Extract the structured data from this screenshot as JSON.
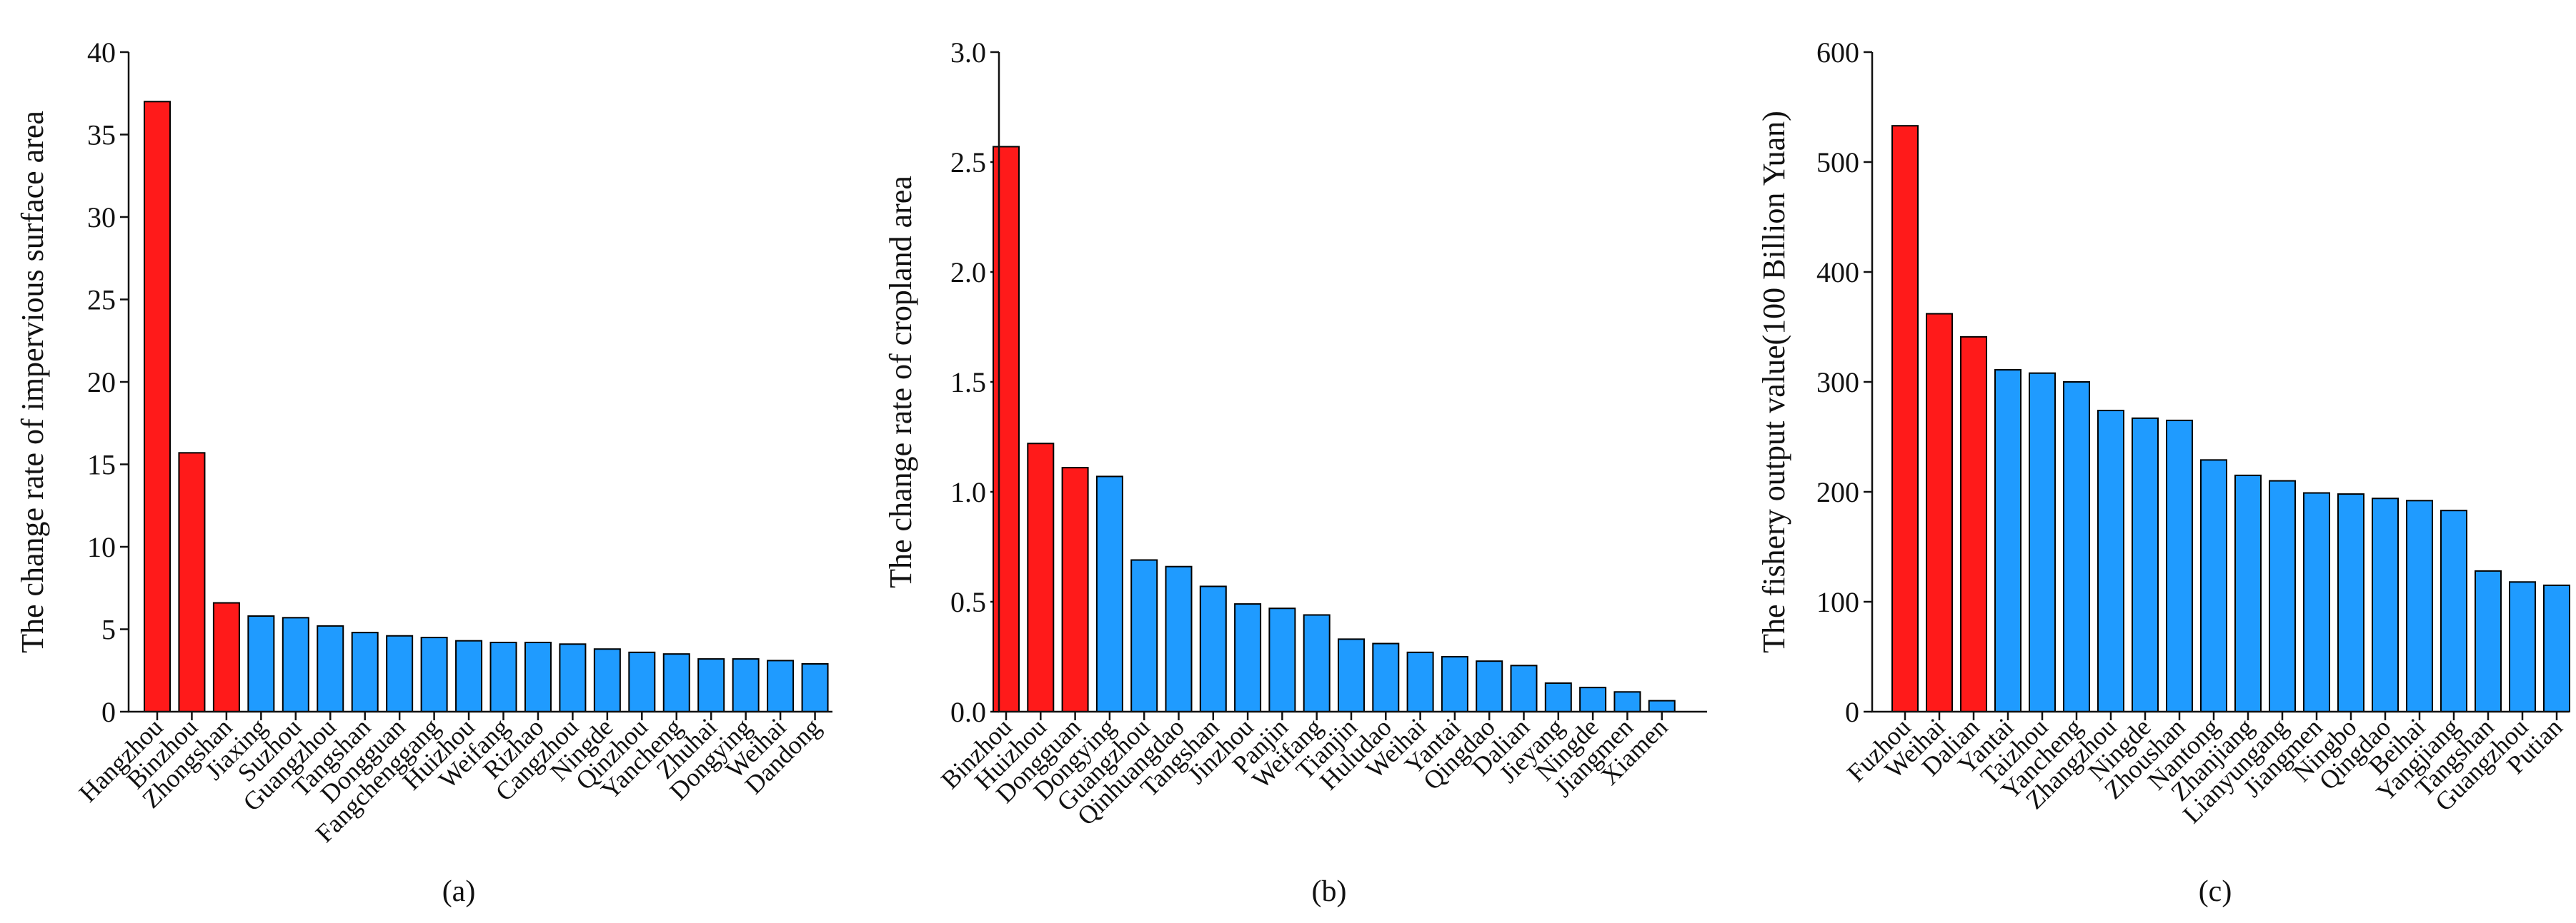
{
  "colors": {
    "highlight": "#ff1a1a",
    "normal": "#1f9bff",
    "stroke": "#000000"
  },
  "chart_data": [
    {
      "type": "bar",
      "panel_label": "(a)",
      "ylabel": "The change rate of impervious surface area",
      "ylim": [
        0,
        40
      ],
      "yticks": [
        0,
        5,
        10,
        15,
        20,
        25,
        30,
        35,
        40
      ],
      "categories": [
        "Hangzhou",
        "Binzhou",
        "Zhongshan",
        "Jiaxing",
        "Suzhou",
        "Guangzhou",
        "Tangshan",
        "Dongguan",
        "Fangchenggang",
        "Huizhou",
        "Weifang",
        "Rizhao",
        "Cangzhou",
        "Ningde",
        "Qinzhou",
        "Yancheng",
        "Zhuhai",
        "Dongying",
        "Weihai",
        "Dandong"
      ],
      "values": [
        37.0,
        15.7,
        6.6,
        5.8,
        5.7,
        5.2,
        4.8,
        4.6,
        4.5,
        4.3,
        4.2,
        4.2,
        4.1,
        3.8,
        3.6,
        3.5,
        3.2,
        3.2,
        3.1,
        2.9
      ],
      "highlighted": [
        0,
        1,
        2
      ]
    },
    {
      "type": "bar",
      "panel_label": "(b)",
      "ylabel": "The change rate of cropland area",
      "ylim": [
        0,
        3.0
      ],
      "yticks": [
        "0.0",
        "0.5",
        "1.0",
        "1.5",
        "2.0",
        "2.5",
        "3.0"
      ],
      "categories": [
        "Binzhou",
        "Huizhou",
        "Dongguan",
        "Dongying",
        "Guangzhou",
        "Qinhuangdao",
        "Tangshan",
        "Jinzhou",
        "Panjin",
        "Weifang",
        "Tianjin",
        "Huludao",
        "Weihai",
        "Yantai",
        "Qingdao",
        "Dalian",
        "Jieyang",
        "Ningde",
        "Jiangmen",
        "Xiamen"
      ],
      "values": [
        2.57,
        1.22,
        1.11,
        1.07,
        0.69,
        0.66,
        0.57,
        0.49,
        0.47,
        0.44,
        0.33,
        0.31,
        0.27,
        0.25,
        0.23,
        0.21,
        0.13,
        0.11,
        0.09,
        0.05
      ],
      "highlighted": [
        0,
        1,
        2
      ]
    },
    {
      "type": "bar",
      "panel_label": "(c)",
      "ylabel": "The fishery output value(100 Billion Yuan)",
      "ylim": [
        0,
        600
      ],
      "yticks": [
        0,
        100,
        200,
        300,
        400,
        500,
        600
      ],
      "categories": [
        "Fuzhou",
        "Weihai",
        "Dalian",
        "Yantai",
        "Taizhou",
        "Yancheng",
        "Zhangzhou",
        "Ningde",
        "Zhoushan",
        "Nantong",
        "Zhanjiang",
        "Lianyungang",
        "Jiangmen",
        "Ningbo",
        "Qingdao",
        "Beihai",
        "Yangjiang",
        "Tangshan",
        "Guangzhou",
        "Putian"
      ],
      "values": [
        533,
        362,
        341,
        311,
        308,
        300,
        274,
        267,
        265,
        229,
        215,
        210,
        199,
        198,
        194,
        192,
        183,
        128,
        118,
        115
      ],
      "highlighted": [
        0,
        1,
        2
      ]
    }
  ]
}
